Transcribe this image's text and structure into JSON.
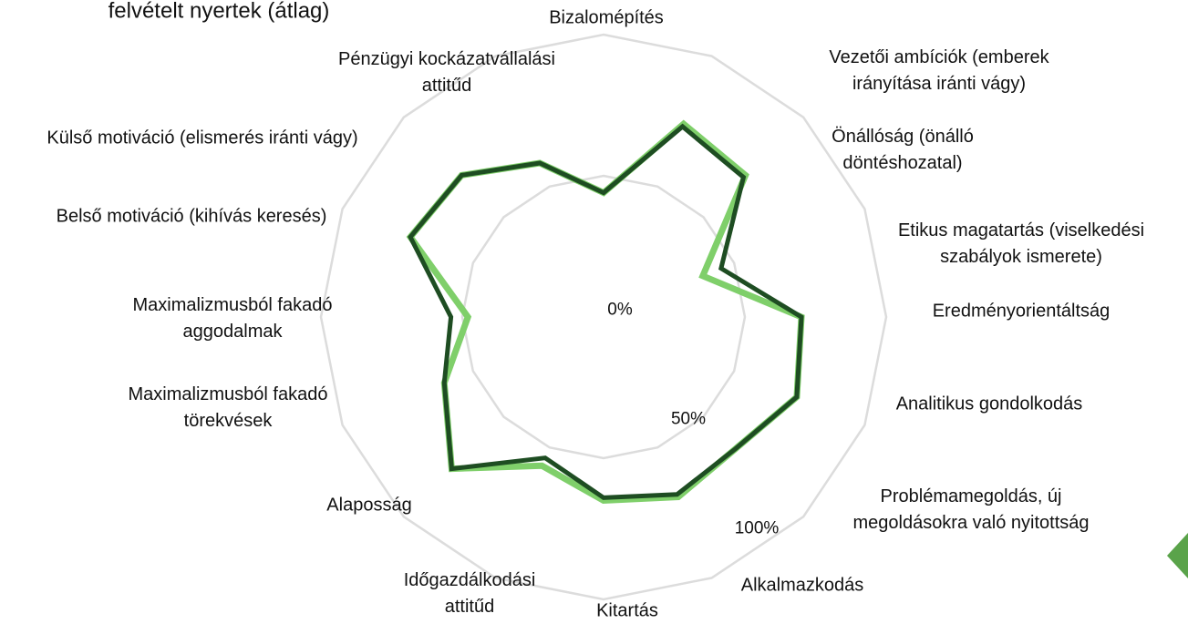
{
  "chart_data": {
    "type": "radar",
    "categories": [
      "Bizalomépítés",
      "Vezetői ambíciók (emberek irányítása iránti vágy)",
      "Önállóság (önálló döntéshozatal)",
      "Etikus magatartás (viselkedési szabályok ismerete)",
      "Eredményorientáltság",
      "Analitikus gondolkodás",
      "Problémamegoldás, új megoldásokra való nyitottság",
      "Alkalmazkodás",
      "Kitartás",
      "Időgazdálkodási attitűd",
      "Alaposság",
      "Maximalizmusból fakadó törekvések",
      "Maximalizmusból fakadó aggodalmak",
      "Belső motiváció (kihívás keresés)",
      "Külső motiváció (elismerés iránti vágy)",
      "Pénzügyi kockázatvállalási attitűd"
    ],
    "series": [
      {
        "color": "#7fcf6a",
        "values": [
          44,
          74,
          71,
          38,
          70,
          74,
          66,
          69,
          65,
          57,
          76,
          61,
          48,
          74,
          71,
          59
        ]
      },
      {
        "name": "felvételt nyertek (átlag)",
        "color": "#1e4d22",
        "values": [
          44,
          73,
          70,
          45,
          70,
          74,
          66,
          68,
          64,
          54,
          76,
          61,
          54,
          74,
          71,
          59
        ]
      }
    ],
    "ylim": [
      0,
      100
    ],
    "yticks": [
      {
        "value": 0,
        "label": "0%"
      },
      {
        "value": 50,
        "label": "50%"
      },
      {
        "value": 100,
        "label": "100%"
      }
    ],
    "grid": true
  }
}
